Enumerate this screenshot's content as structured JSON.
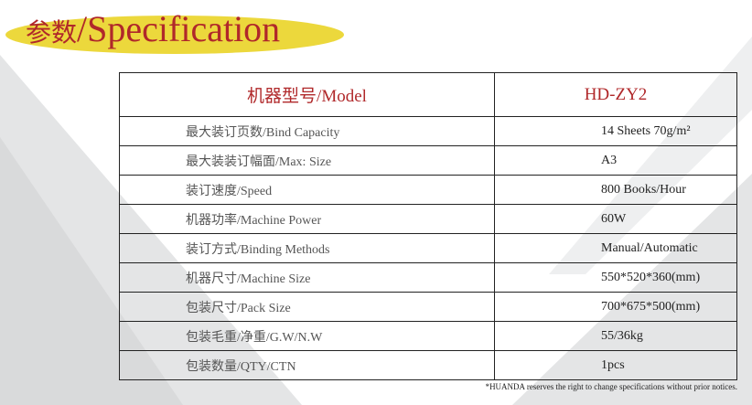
{
  "title": {
    "cn": "参数",
    "sep": "/",
    "en": "Specification"
  },
  "colors": {
    "title": "#b0282a",
    "highlight": "#ecd83c",
    "background_shape": "#e4e5e6"
  },
  "table": {
    "header": {
      "label": "机器型号/Model",
      "value": "HD-ZY2"
    },
    "rows": [
      {
        "label": "最大装订页数/Bind Capacity",
        "value": "14 Sheets 70g/m²"
      },
      {
        "label": "最大装装订幅面/Max: Size",
        "value": "A3"
      },
      {
        "label": "装订速度/Speed",
        "value": "800 Books/Hour"
      },
      {
        "label": "机器功率/Machine Power",
        "value": "60W"
      },
      {
        "label": "装订方式/Binding Methods",
        "value": "Manual/Automatic"
      },
      {
        "label": "机器尺寸/Machine Size",
        "value": "550*520*360(mm)"
      },
      {
        "label": "包装尺寸/Pack Size",
        "value": "700*675*500(mm)"
      },
      {
        "label": "包装毛重/净重/G.W/N.W",
        "value": "55/36kg"
      },
      {
        "label": "包装数量/QTY/CTN",
        "value": "1pcs"
      }
    ]
  },
  "footnote": "*HUANDA reserves the right to change specifications without prior notices."
}
